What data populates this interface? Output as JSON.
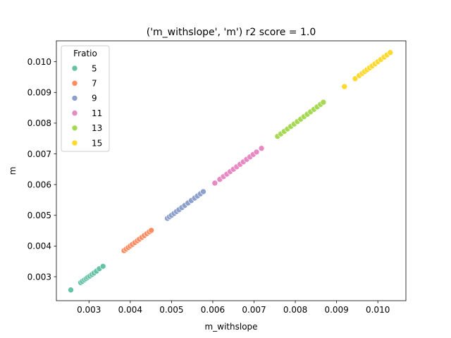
{
  "chart_data": {
    "type": "scatter",
    "title": "('m_withslope', 'm') r2 score = 1.0",
    "xlabel": "m_withslope",
    "ylabel": "m",
    "xlim": [
      0.00221,
      0.01068
    ],
    "ylim": [
      0.00222,
      0.01068
    ],
    "x_ticks": [
      0.003,
      0.004,
      0.005,
      0.006,
      0.007,
      0.008,
      0.009,
      0.01
    ],
    "x_tick_labels": [
      "0.003",
      "0.004",
      "0.005",
      "0.006",
      "0.007",
      "0.008",
      "0.009",
      "0.010"
    ],
    "y_ticks": [
      0.003,
      0.004,
      0.005,
      0.006,
      0.007,
      0.008,
      0.009,
      0.01
    ],
    "y_tick_labels": [
      "0.003",
      "0.004",
      "0.005",
      "0.006",
      "0.007",
      "0.008",
      "0.009",
      "0.010"
    ],
    "grid": false,
    "legend": {
      "title": "Fratio",
      "placement": "top-left"
    },
    "series": [
      {
        "name": "5",
        "color": "#66c2a5",
        "points": [
          [
            0.00256,
            0.00257
          ],
          [
            0.0028,
            0.00281
          ],
          [
            0.00284,
            0.00285
          ],
          [
            0.00289,
            0.0029
          ],
          [
            0.00293,
            0.00294
          ],
          [
            0.00297,
            0.00298
          ],
          [
            0.00302,
            0.00302
          ],
          [
            0.00307,
            0.00307
          ],
          [
            0.00312,
            0.00312
          ],
          [
            0.00318,
            0.00318
          ],
          [
            0.00325,
            0.00326
          ],
          [
            0.00334,
            0.00334
          ]
        ]
      },
      {
        "name": "7",
        "color": "#fc8d62",
        "points": [
          [
            0.00385,
            0.00385
          ],
          [
            0.0039,
            0.0039
          ],
          [
            0.00395,
            0.00395
          ],
          [
            0.004,
            0.004
          ],
          [
            0.00405,
            0.00405
          ],
          [
            0.00411,
            0.00411
          ],
          [
            0.00417,
            0.00417
          ],
          [
            0.00422,
            0.00422
          ],
          [
            0.00428,
            0.00428
          ],
          [
            0.00434,
            0.00434
          ],
          [
            0.0044,
            0.0044
          ],
          [
            0.00446,
            0.00446
          ],
          [
            0.00451,
            0.00451
          ]
        ]
      },
      {
        "name": "9",
        "color": "#8da0cb",
        "points": [
          [
            0.0049,
            0.0049
          ],
          [
            0.00495,
            0.00495
          ],
          [
            0.005,
            0.005
          ],
          [
            0.00506,
            0.00506
          ],
          [
            0.00512,
            0.00512
          ],
          [
            0.00518,
            0.00518
          ],
          [
            0.00525,
            0.00525
          ],
          [
            0.00532,
            0.00532
          ],
          [
            0.0054,
            0.0054
          ],
          [
            0.00548,
            0.00548
          ],
          [
            0.00556,
            0.00556
          ],
          [
            0.00563,
            0.00563
          ],
          [
            0.0057,
            0.0057
          ],
          [
            0.00577,
            0.00577
          ]
        ]
      },
      {
        "name": "11",
        "color": "#e78ac3",
        "points": [
          [
            0.00605,
            0.00605
          ],
          [
            0.00617,
            0.00617
          ],
          [
            0.00626,
            0.00626
          ],
          [
            0.00634,
            0.00634
          ],
          [
            0.00642,
            0.00642
          ],
          [
            0.0065,
            0.0065
          ],
          [
            0.00658,
            0.00658
          ],
          [
            0.00666,
            0.00666
          ],
          [
            0.00674,
            0.00674
          ],
          [
            0.00682,
            0.00682
          ],
          [
            0.0069,
            0.0069
          ],
          [
            0.00698,
            0.00698
          ],
          [
            0.00706,
            0.00706
          ],
          [
            0.00718,
            0.00718
          ]
        ]
      },
      {
        "name": "13",
        "color": "#a6d854",
        "points": [
          [
            0.00757,
            0.00757
          ],
          [
            0.00765,
            0.00765
          ],
          [
            0.00773,
            0.00773
          ],
          [
            0.00781,
            0.00781
          ],
          [
            0.00789,
            0.00789
          ],
          [
            0.00797,
            0.00797
          ],
          [
            0.00805,
            0.00805
          ],
          [
            0.00813,
            0.00813
          ],
          [
            0.00821,
            0.00821
          ],
          [
            0.00829,
            0.00829
          ],
          [
            0.00837,
            0.00837
          ],
          [
            0.00845,
            0.00845
          ],
          [
            0.00853,
            0.00853
          ],
          [
            0.00861,
            0.00861
          ],
          [
            0.00868,
            0.00868
          ]
        ]
      },
      {
        "name": "15",
        "color": "#ffd92f",
        "points": [
          [
            0.00919,
            0.00919
          ],
          [
            0.00945,
            0.00945
          ],
          [
            0.00955,
            0.00955
          ],
          [
            0.00962,
            0.00962
          ],
          [
            0.00968,
            0.00968
          ],
          [
            0.00974,
            0.00974
          ],
          [
            0.0098,
            0.0098
          ],
          [
            0.00986,
            0.00986
          ],
          [
            0.00993,
            0.00993
          ],
          [
            0.01,
            0.01
          ],
          [
            0.01007,
            0.01007
          ],
          [
            0.01015,
            0.01015
          ],
          [
            0.01022,
            0.01022
          ],
          [
            0.0103,
            0.0103
          ]
        ]
      }
    ]
  }
}
